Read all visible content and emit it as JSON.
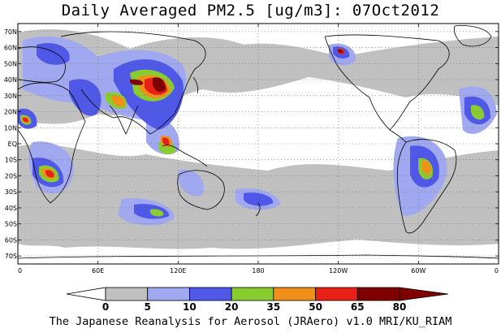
{
  "title": "Daily Averaged PM2.5 [ug/m3]: 07Oct2012",
  "footer": "The Japanese Reanalysis for Aerosol (JRAero) v1.0 MRI/KU_RIAM",
  "map": {
    "projection": "equirectangular",
    "lon_range": [
      0,
      360
    ],
    "lat_range": [
      -75,
      75
    ],
    "grid": "dotted",
    "lat_labels": [
      "70N",
      "60N",
      "50N",
      "40N",
      "30N",
      "20N",
      "10N",
      "EQ",
      "10S",
      "20S",
      "30S",
      "40S",
      "50S",
      "60S",
      "70S"
    ],
    "lat_values": [
      70,
      60,
      50,
      40,
      30,
      20,
      10,
      0,
      -10,
      -20,
      -30,
      -40,
      -50,
      -60,
      -70
    ],
    "lon_labels": [
      "0",
      "60E",
      "120E",
      "180",
      "120W",
      "60W",
      "0"
    ],
    "lon_values": [
      0,
      60,
      120,
      180,
      240,
      300,
      360
    ]
  },
  "colorbar": {
    "levels": [
      "0",
      "5",
      "10",
      "20",
      "35",
      "50",
      "65",
      "80"
    ],
    "colors": [
      "#ffffff",
      "#c0c0c0",
      "#a0a8f0",
      "#5058e8",
      "#88cc30",
      "#f09018",
      "#e82018",
      "#800000"
    ],
    "extend": "both"
  },
  "colors": {
    "land_outline": "#000000",
    "background": "#ffffff"
  }
}
